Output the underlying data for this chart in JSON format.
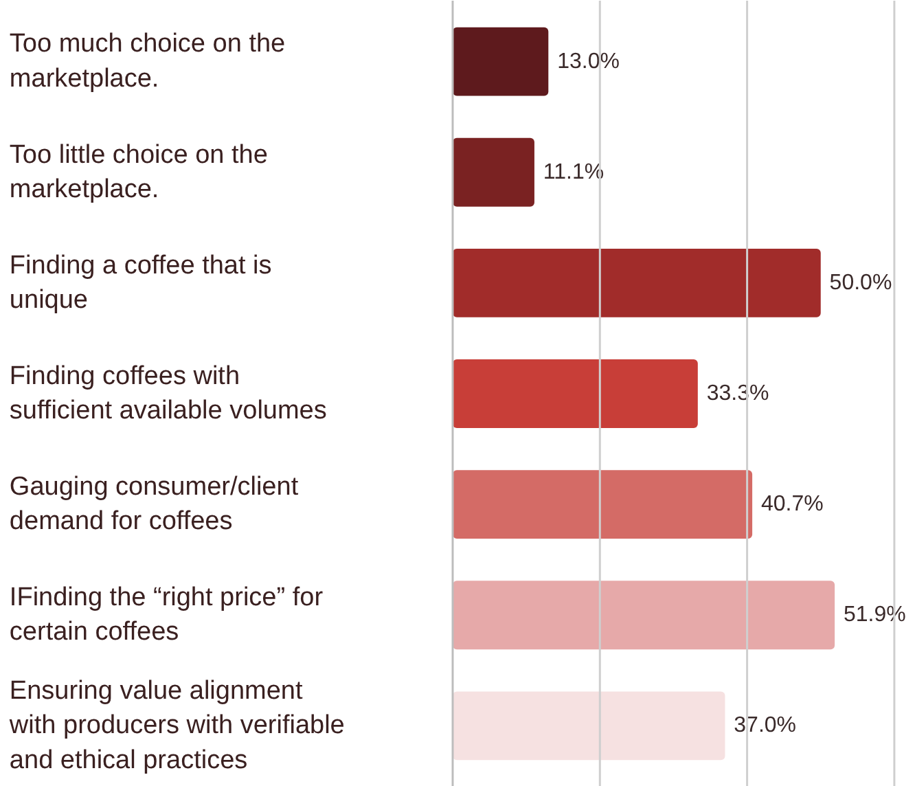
{
  "chart_data": {
    "type": "bar",
    "orientation": "horizontal",
    "ref_lines": [
      {
        "axis": "x",
        "value": 20,
        "color": "#cfcfcf"
      },
      {
        "axis": "x",
        "value": 40,
        "color": "#cfcfcf"
      },
      {
        "axis": "x",
        "value": 60,
        "color": "#cfcfcf"
      }
    ],
    "categories": [
      "Too much choice on the\nmarketplace.",
      "Too little choice on the\nmarketplace.",
      "Finding a coffee that is\nunique",
      "Finding coffees with\nsufficient available volumes",
      "Gauging consumer/client\ndemand for coffees",
      "IFinding the “right price” for\ncertain coffees",
      "Ensuring value alignment\nwith producers with verifiable\nand ethical practices"
    ],
    "values": [
      13.0,
      11.1,
      50.0,
      33.3,
      40.7,
      51.9,
      37.0
    ],
    "colors": [
      "#5e1a1d",
      "#7a2222",
      "#a12c2a",
      "#c83e38",
      "#d46b66",
      "#e6a9a9",
      "#f6e1e1"
    ],
    "value_labels": [
      "13.0%",
      "11.1%",
      "50.0%",
      "33.3%",
      "40.7%",
      "51.9%",
      "37.0%"
    ]
  }
}
